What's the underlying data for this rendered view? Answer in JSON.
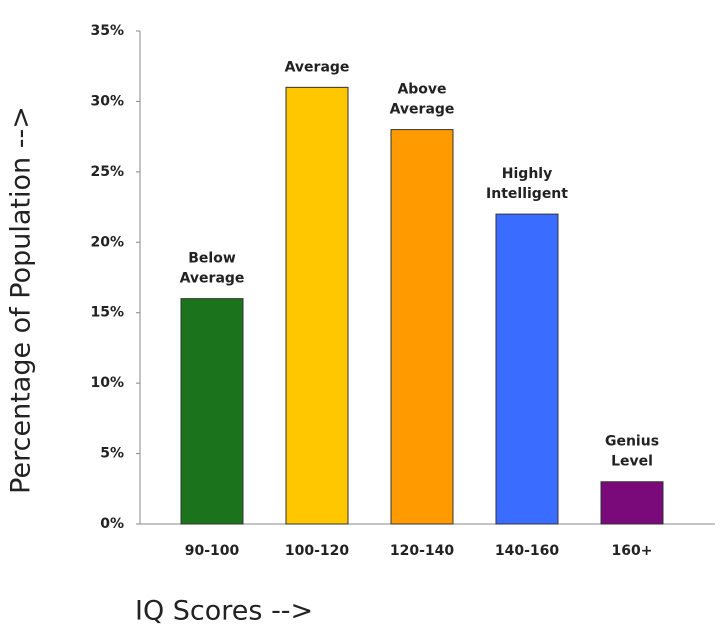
{
  "chart_data": {
    "type": "bar",
    "y_label": "Percentage of Population -->",
    "x_label": "IQ Scores -->",
    "categories": [
      "90-100",
      "100-120",
      "120-140",
      "140-160",
      "160+"
    ],
    "values": [
      16,
      31,
      28,
      22,
      3
    ],
    "colors": [
      "#1b741b",
      "#ffc700",
      "#ff9a00",
      "#3a6cff",
      "#7a0a7a"
    ],
    "bar_labels": [
      [
        "Below",
        "Average"
      ],
      [
        "Average"
      ],
      [
        "Above",
        "Average"
      ],
      [
        "Highly",
        "Intelligent"
      ],
      [
        "Genius",
        "Level"
      ]
    ],
    "ylim": [
      0,
      35
    ],
    "yticks": [
      {
        "value": 0,
        "label": "0%"
      },
      {
        "value": 5,
        "label": "5%"
      },
      {
        "value": 10,
        "label": "10%"
      },
      {
        "value": 15,
        "label": "15%"
      },
      {
        "value": 20,
        "label": "20%"
      },
      {
        "value": 25,
        "label": "25%"
      },
      {
        "value": 30,
        "label": "30%"
      },
      {
        "value": 35,
        "label": "35%"
      }
    ],
    "grid": false
  }
}
